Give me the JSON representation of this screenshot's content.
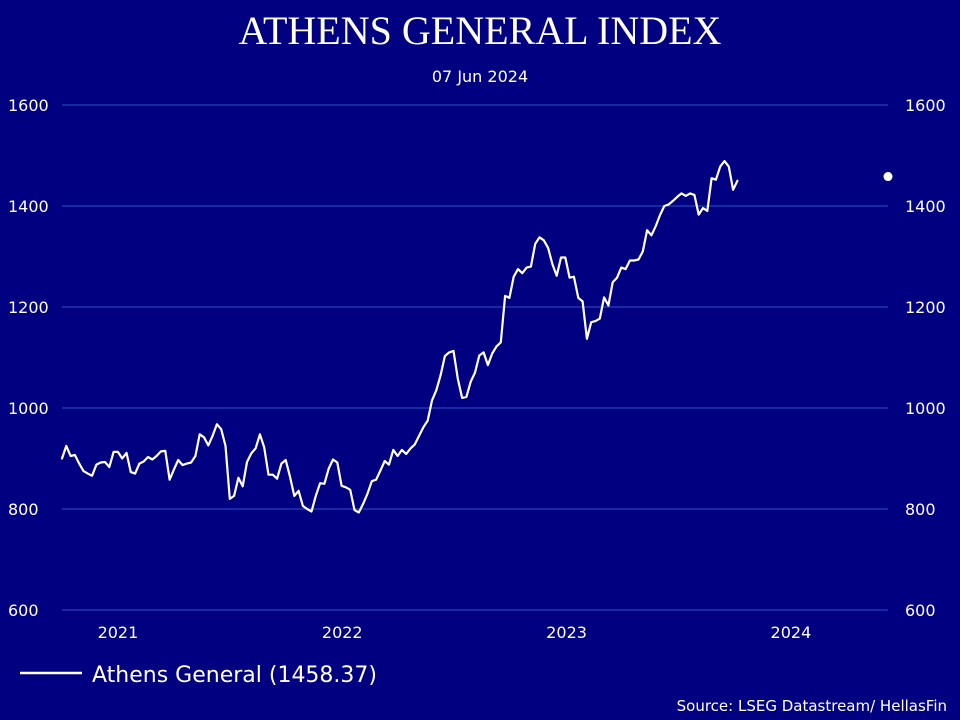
{
  "chart_data": {
    "type": "line",
    "title": "ATHENS GENERAL INDEX",
    "subtitle": "07 Jun 2024",
    "source": "Source: LSEG Datastream/ HellasFin",
    "ylim": [
      600,
      1600
    ],
    "yticks": [
      600,
      800,
      1000,
      1200,
      1400,
      1600
    ],
    "y_axis_both_sides": true,
    "grid": "horizontal",
    "legend_position": "bottom-left",
    "colors": {
      "background": "#000080",
      "grid": "#2c53c8",
      "line": "#ffffff",
      "text": "#ffffff"
    },
    "xlim": [
      "2020-10-02",
      "2024-06-07"
    ],
    "xticks": [
      {
        "label": "2021",
        "date": "2021-01-01"
      },
      {
        "label": "2022",
        "date": "2022-01-01"
      },
      {
        "label": "2023",
        "date": "2023-01-01"
      },
      {
        "label": "2024",
        "date": "2024-01-01"
      }
    ],
    "series": [
      {
        "name": "Athens General (1458.37)",
        "color": "#ffffff",
        "last_value": 1458.37,
        "last_date": "2024-06-07",
        "points": [
          [
            "2020-10-02",
            900
          ],
          [
            "2020-10-09",
            925
          ],
          [
            "2020-10-16",
            905
          ],
          [
            "2020-10-23",
            907
          ],
          [
            "2020-10-30",
            890
          ],
          [
            "2020-11-06",
            875
          ],
          [
            "2020-11-13",
            870
          ],
          [
            "2020-11-20",
            866
          ],
          [
            "2020-11-27",
            888
          ],
          [
            "2020-12-04",
            892
          ],
          [
            "2020-12-11",
            893
          ],
          [
            "2020-12-18",
            883
          ],
          [
            "2020-12-25",
            913
          ],
          [
            "2021-01-01",
            913
          ],
          [
            "2021-01-08",
            900
          ],
          [
            "2021-01-15",
            911
          ],
          [
            "2021-01-22",
            873
          ],
          [
            "2021-01-29",
            870
          ],
          [
            "2021-02-05",
            890
          ],
          [
            "2021-02-12",
            894
          ],
          [
            "2021-02-19",
            903
          ],
          [
            "2021-02-26",
            898
          ],
          [
            "2021-03-05",
            905
          ],
          [
            "2021-03-12",
            914
          ],
          [
            "2021-03-19",
            915
          ],
          [
            "2021-03-26",
            858
          ],
          [
            "2021-04-02",
            878
          ],
          [
            "2021-04-09",
            897
          ],
          [
            "2021-04-16",
            887
          ],
          [
            "2021-04-23",
            890
          ],
          [
            "2021-04-30",
            892
          ],
          [
            "2021-05-07",
            905
          ],
          [
            "2021-05-14",
            948
          ],
          [
            "2021-05-21",
            942
          ],
          [
            "2021-05-28",
            926
          ],
          [
            "2021-06-04",
            945
          ],
          [
            "2021-06-11",
            968
          ],
          [
            "2021-06-18",
            958
          ],
          [
            "2021-06-25",
            925
          ],
          [
            "2021-07-02",
            820
          ],
          [
            "2021-07-09",
            826
          ],
          [
            "2021-07-16",
            862
          ],
          [
            "2021-07-23",
            845
          ],
          [
            "2021-07-30",
            893
          ],
          [
            "2021-08-06",
            910
          ],
          [
            "2021-08-13",
            920
          ],
          [
            "2021-08-20",
            948
          ],
          [
            "2021-08-27",
            922
          ],
          [
            "2021-09-03",
            868
          ],
          [
            "2021-09-10",
            868
          ],
          [
            "2021-09-17",
            860
          ],
          [
            "2021-09-24",
            890
          ],
          [
            "2021-10-01",
            897
          ],
          [
            "2021-10-08",
            864
          ],
          [
            "2021-10-15",
            826
          ],
          [
            "2021-10-22",
            836
          ],
          [
            "2021-10-29",
            806
          ],
          [
            "2021-11-05",
            800
          ],
          [
            "2021-11-12",
            795
          ],
          [
            "2021-11-19",
            826
          ],
          [
            "2021-11-26",
            851
          ],
          [
            "2021-12-03",
            850
          ],
          [
            "2021-12-10",
            880
          ],
          [
            "2021-12-17",
            898
          ],
          [
            "2021-12-24",
            892
          ],
          [
            "2021-12-31",
            846
          ],
          [
            "2022-01-07",
            843
          ],
          [
            "2022-01-14",
            838
          ],
          [
            "2022-01-21",
            798
          ],
          [
            "2022-01-28",
            793
          ],
          [
            "2022-02-04",
            810
          ],
          [
            "2022-02-11",
            830
          ],
          [
            "2022-02-18",
            855
          ],
          [
            "2022-02-25",
            858
          ],
          [
            "2022-03-04",
            876
          ],
          [
            "2022-03-11",
            895
          ],
          [
            "2022-03-18",
            888
          ],
          [
            "2022-03-25",
            917
          ],
          [
            "2022-04-01",
            905
          ],
          [
            "2022-04-08",
            917
          ],
          [
            "2022-04-15",
            909
          ],
          [
            "2022-04-22",
            920
          ],
          [
            "2022-04-29",
            928
          ],
          [
            "2022-05-06",
            945
          ],
          [
            "2022-05-13",
            962
          ],
          [
            "2022-05-20",
            975
          ],
          [
            "2022-05-27",
            1015
          ],
          [
            "2022-06-03",
            1035
          ],
          [
            "2022-06-10",
            1065
          ],
          [
            "2022-06-17",
            1103
          ],
          [
            "2022-06-24",
            1110
          ],
          [
            "2022-07-01",
            1113
          ],
          [
            "2022-07-08",
            1058
          ],
          [
            "2022-07-15",
            1020
          ],
          [
            "2022-07-22",
            1022
          ],
          [
            "2022-07-29",
            1052
          ],
          [
            "2022-08-05",
            1070
          ],
          [
            "2022-08-12",
            1104
          ],
          [
            "2022-08-19",
            1110
          ],
          [
            "2022-08-26",
            1085
          ],
          [
            "2022-09-02",
            1108
          ],
          [
            "2022-09-09",
            1122
          ],
          [
            "2022-09-16",
            1130
          ],
          [
            "2022-09-23",
            1222
          ],
          [
            "2022-09-30",
            1218
          ],
          [
            "2022-10-07",
            1260
          ],
          [
            "2022-10-14",
            1275
          ],
          [
            "2022-10-21",
            1267
          ],
          [
            "2022-10-28",
            1278
          ],
          [
            "2022-11-04",
            1280
          ],
          [
            "2022-11-11",
            1325
          ],
          [
            "2022-11-18",
            1338
          ],
          [
            "2022-11-25",
            1332
          ],
          [
            "2022-12-02",
            1317
          ],
          [
            "2022-12-09",
            1285
          ],
          [
            "2022-12-16",
            1262
          ],
          [
            "2022-12-23",
            1298
          ],
          [
            "2022-12-30",
            1298
          ],
          [
            "2023-01-06",
            1258
          ],
          [
            "2023-01-13",
            1260
          ],
          [
            "2023-01-20",
            1218
          ],
          [
            "2023-01-27",
            1211
          ],
          [
            "2023-02-03",
            1137
          ],
          [
            "2023-02-10",
            1170
          ],
          [
            "2023-02-17",
            1172
          ],
          [
            "2023-02-24",
            1177
          ],
          [
            "2023-03-03",
            1219
          ],
          [
            "2023-03-10",
            1203
          ],
          [
            "2023-03-17",
            1249
          ],
          [
            "2023-03-24",
            1258
          ],
          [
            "2023-03-31",
            1278
          ],
          [
            "2023-04-07",
            1275
          ],
          [
            "2023-04-14",
            1292
          ],
          [
            "2023-04-21",
            1292
          ],
          [
            "2023-04-28",
            1294
          ],
          [
            "2023-05-05",
            1310
          ],
          [
            "2023-05-12",
            1352
          ],
          [
            "2023-05-19",
            1342
          ],
          [
            "2023-05-26",
            1360
          ],
          [
            "2023-06-02",
            1382
          ],
          [
            "2023-06-09",
            1400
          ],
          [
            "2023-06-16",
            1403
          ],
          [
            "2023-06-23",
            1410
          ],
          [
            "2023-06-30",
            1418
          ],
          [
            "2023-07-07",
            1425
          ],
          [
            "2023-07-14",
            1420
          ],
          [
            "2023-07-21",
            1425
          ],
          [
            "2023-07-28",
            1422
          ],
          [
            "2023-08-04",
            1383
          ],
          [
            "2023-08-11",
            1396
          ],
          [
            "2023-08-18",
            1390
          ],
          [
            "2023-08-25",
            1455
          ],
          [
            "2023-09-01",
            1452
          ],
          [
            "2023-09-08",
            1478
          ],
          [
            "2023-09-15",
            1489
          ],
          [
            "2023-09-22",
            1478
          ],
          [
            "2023-09-29",
            1432
          ],
          [
            "2023-10-06",
            1450
          ]
        ]
      }
    ]
  }
}
